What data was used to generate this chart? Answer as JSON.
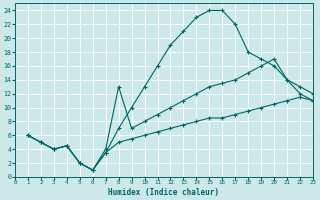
{
  "xlabel": "Humidex (Indice chaleur)",
  "bg_color": "#cce8e8",
  "grid_color": "#aacccc",
  "line_color": "#006666",
  "xlim": [
    0,
    23
  ],
  "ylim": [
    0,
    25
  ],
  "xticks": [
    0,
    1,
    2,
    3,
    4,
    5,
    6,
    7,
    8,
    9,
    10,
    11,
    12,
    13,
    14,
    15,
    16,
    17,
    18,
    19,
    20,
    21,
    22,
    23
  ],
  "yticks": [
    0,
    2,
    4,
    6,
    8,
    10,
    12,
    14,
    16,
    18,
    20,
    22,
    24
  ],
  "lines": [
    {
      "x": [
        1,
        2,
        3,
        4,
        5,
        6,
        7,
        8,
        9,
        10,
        11,
        12,
        13,
        14,
        15,
        16,
        17,
        18,
        19,
        20,
        21,
        22,
        23
      ],
      "y": [
        6,
        5,
        4,
        4.5,
        2,
        1,
        3.5,
        7,
        10,
        13,
        16,
        19,
        21,
        23,
        24,
        24,
        22,
        18,
        17,
        16,
        14,
        12,
        11
      ]
    },
    {
      "x": [
        1,
        2,
        3,
        4,
        5,
        6,
        7,
        8,
        9,
        10,
        11,
        12,
        13,
        14,
        15,
        16,
        17,
        18,
        19,
        20,
        21,
        22,
        23
      ],
      "y": [
        6,
        5,
        4,
        4.5,
        2,
        1,
        4,
        13,
        7,
        8,
        9,
        10,
        11,
        12,
        13,
        13.5,
        14,
        15,
        16,
        17,
        14,
        13,
        12
      ]
    },
    {
      "x": [
        1,
        2,
        3,
        4,
        5,
        6,
        7,
        8,
        9,
        10,
        11,
        12,
        13,
        14,
        15,
        16,
        17,
        18,
        19,
        20,
        21,
        22,
        23
      ],
      "y": [
        6,
        5,
        4,
        4.5,
        2,
        1,
        3.5,
        5,
        5.5,
        6,
        6.5,
        7,
        7.5,
        8,
        8.5,
        8.5,
        9,
        9.5,
        10,
        10.5,
        11,
        11.5,
        11
      ]
    }
  ]
}
